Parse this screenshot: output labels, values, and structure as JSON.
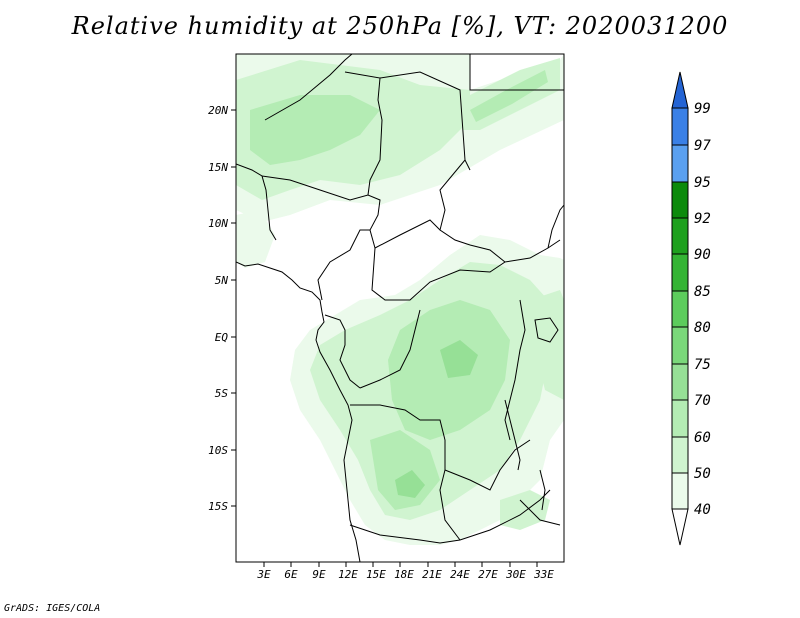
{
  "title": "Relative humidity at 250hPa [%], VT: 2020031200",
  "credit": "GrADS: IGES/COLA",
  "map": {
    "lon_range": [
      0,
      36
    ],
    "lat_range": [
      -20,
      25
    ],
    "lat_ticks": [
      "20N",
      "15N",
      "10N",
      "5N",
      "EQ",
      "5S",
      "10S",
      "15S"
    ],
    "lat_tick_values": [
      20,
      15,
      10,
      5,
      0,
      -5,
      -10,
      -15
    ],
    "lon_ticks": [
      "3E",
      "6E",
      "9E",
      "12E",
      "15E",
      "18E",
      "21E",
      "24E",
      "27E",
      "30E",
      "33E"
    ],
    "lon_tick_values": [
      3,
      6,
      9,
      12,
      15,
      18,
      21,
      24,
      27,
      30,
      33
    ]
  },
  "colorbar": {
    "levels": [
      "99",
      "97",
      "95",
      "92",
      "90",
      "85",
      "80",
      "75",
      "70",
      "60",
      "50",
      "40"
    ],
    "colors": [
      "#2464d4",
      "#3a80e6",
      "#5aa0f0",
      "#0c8a0c",
      "#1ea01e",
      "#34b434",
      "#5ccc5c",
      "#7ad87a",
      "#96e096",
      "#b4ecb4",
      "#d0f4d0",
      "#ebfaeb"
    ],
    "fill_colors": {
      "light": "#ebfaeb",
      "c50": "#d0f4d0",
      "c60": "#b4ecb4",
      "c70": "#96e096"
    }
  }
}
